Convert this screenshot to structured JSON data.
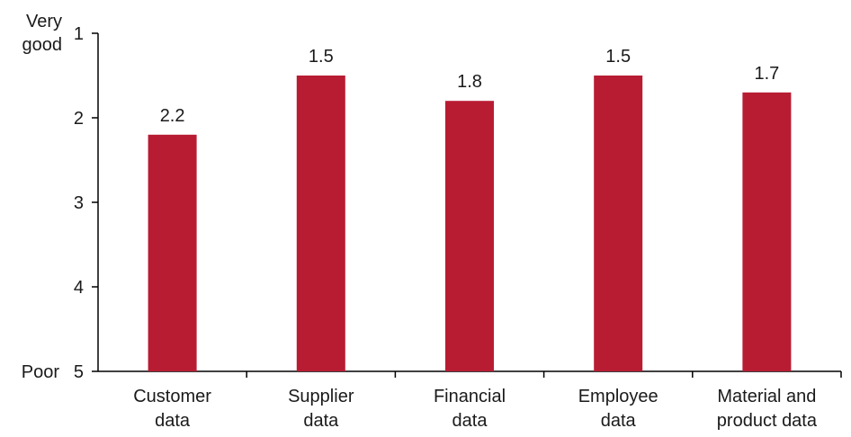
{
  "chart_data": {
    "type": "bar",
    "categories": [
      [
        "Customer",
        "data"
      ],
      [
        "Supplier",
        "data"
      ],
      [
        "Financial",
        "data"
      ],
      [
        "Employee",
        "data"
      ],
      [
        "Material and",
        "product data"
      ]
    ],
    "values": [
      2.2,
      1.5,
      1.8,
      1.5,
      1.7
    ],
    "data_labels": [
      "2.2",
      "1.5",
      "1.8",
      "1.5",
      "1.7"
    ],
    "yticks": [
      "1",
      "2",
      "3",
      "4",
      "5"
    ],
    "ylim": [
      1,
      5
    ],
    "y_inverted": true,
    "y_top_label": [
      "Very",
      "good"
    ],
    "y_bottom_label": "Poor",
    "bar_color": "#b81c33",
    "grid": false,
    "legend": "none"
  }
}
